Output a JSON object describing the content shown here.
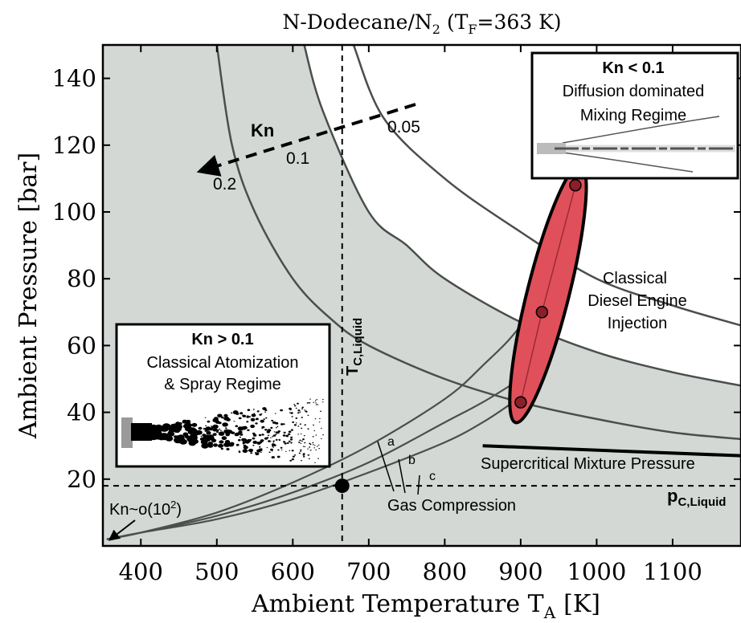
{
  "chart_data": {
    "type": "line",
    "title": "N-Dodecane/N",
    "title_sub": "2",
    "title_paren": "(T",
    "title_paren_sub": "F",
    "title_paren_rest": "=363 K)",
    "xlabel": "Ambient Temperature T",
    "xlabel_sub": "A",
    "xlabel_unit": "[K]",
    "ylabel": "Ambient Pressure [bar]",
    "xlim": [
      350,
      1190
    ],
    "ylim": [
      0,
      150
    ],
    "x_ticks": [
      400,
      500,
      600,
      700,
      800,
      900,
      1000,
      1100
    ],
    "y_ticks": [
      20,
      40,
      60,
      80,
      100,
      120,
      140
    ],
    "grid": false,
    "colors": {
      "shade": "#d3d8d5",
      "curve": "#4a4f4c",
      "ellipse": "#e0505a",
      "ink": "#000000"
    },
    "kn_curves": [
      {
        "label": "0.2",
        "points": [
          [
            500,
            150
          ],
          [
            520,
            120
          ],
          [
            550,
            100
          ],
          [
            600,
            80
          ],
          [
            650,
            68
          ],
          [
            700,
            60
          ],
          [
            800,
            50
          ],
          [
            900,
            43
          ],
          [
            1000,
            38
          ],
          [
            1100,
            34
          ],
          [
            1190,
            32
          ]
        ]
      },
      {
        "label": "0.1",
        "points": [
          [
            615,
            150
          ],
          [
            640,
            130
          ],
          [
            700,
            100
          ],
          [
            750,
            90
          ],
          [
            800,
            80
          ],
          [
            900,
            67
          ],
          [
            1000,
            58
          ],
          [
            1100,
            52
          ],
          [
            1190,
            48
          ]
        ]
      },
      {
        "label": "0.05",
        "points": [
          [
            680,
            150
          ],
          [
            720,
            128
          ],
          [
            800,
            110
          ],
          [
            900,
            94
          ],
          [
            1000,
            80
          ],
          [
            1100,
            72
          ],
          [
            1190,
            66
          ]
        ]
      }
    ],
    "kn_labels": [
      "0.2",
      "0.1",
      "0.05"
    ],
    "kn_arrow_label": "Kn",
    "compression_curves": [
      {
        "label": "a",
        "points": [
          [
            355,
            2
          ],
          [
            400,
            4
          ],
          [
            500,
            8
          ],
          [
            600,
            14
          ],
          [
            700,
            22
          ],
          [
            800,
            31
          ],
          [
            850,
            37
          ],
          [
            890,
            43
          ]
        ]
      },
      {
        "label": "b",
        "points": [
          [
            355,
            2
          ],
          [
            400,
            4
          ],
          [
            500,
            9
          ],
          [
            600,
            16
          ],
          [
            700,
            25
          ],
          [
            800,
            37
          ],
          [
            850,
            43
          ],
          [
            900,
            50
          ]
        ]
      },
      {
        "label": "c",
        "points": [
          [
            355,
            2
          ],
          [
            400,
            4
          ],
          [
            500,
            10
          ],
          [
            600,
            19
          ],
          [
            700,
            30
          ],
          [
            800,
            44
          ],
          [
            850,
            54
          ],
          [
            900,
            66
          ],
          [
            950,
            85
          ],
          [
            975,
            108
          ]
        ]
      }
    ],
    "compression_labels": [
      "a",
      "b",
      "c"
    ],
    "compression_text": "Gas Compression",
    "tc_liquid": 665,
    "tc_label": "T",
    "tc_label_sub": "C,Liquid",
    "pc_liquid": 18,
    "pc_label": "p",
    "pc_label_sub": "C,Liquid",
    "critical_point": [
      665,
      18
    ],
    "supercritical_line": [
      [
        850,
        30
      ],
      [
        1190,
        27
      ]
    ],
    "supercritical_label": "Supercritical Mixture Pressure",
    "diesel_points": [
      [
        900,
        43
      ],
      [
        928,
        70
      ],
      [
        972,
        108
      ]
    ],
    "diesel_label": [
      "Classical",
      "Diesel Engine",
      "Injection"
    ],
    "kn_low_label": "Kn~o(10",
    "kn_low_sup": "2",
    "kn_low_close": ")",
    "box_spray": {
      "title": "Kn > 0.1",
      "lines": [
        "Classical Atomization",
        "& Spray Regime"
      ]
    },
    "box_diffusion": {
      "title": "Kn < 0.1",
      "lines": [
        "Diffusion dominated",
        "Mixing Regime"
      ]
    }
  }
}
